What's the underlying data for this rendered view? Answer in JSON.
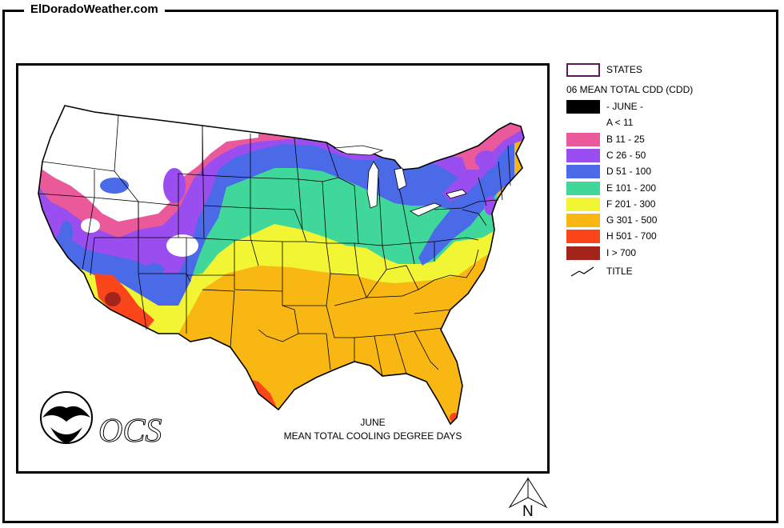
{
  "header": {
    "site_title": "ElDoradoWeather.com"
  },
  "map": {
    "month_label": "JUNE",
    "caption": "MEAN TOTAL COOLING DEGREE DAYS",
    "noaa_logo_text": "NOAA",
    "ocs_logo_text": "OCS"
  },
  "legend": {
    "states_label": "STATES",
    "heading": "06 MEAN TOTAL CDD (CDD)",
    "items": [
      {
        "label": "- JUNE -",
        "color": "#000000"
      },
      {
        "label": "A < 11",
        "color": "#ffffff"
      },
      {
        "label": "B 11 - 25",
        "color": "#ea5a9a"
      },
      {
        "label": "C 26 - 50",
        "color": "#9b4ef0"
      },
      {
        "label": "D 51 - 100",
        "color": "#4a6ae8"
      },
      {
        "label": "E 101 - 200",
        "color": "#40d89a"
      },
      {
        "label": "F 201 - 300",
        "color": "#f2f534"
      },
      {
        "label": "G 301 - 500",
        "color": "#f9b714"
      },
      {
        "label": "H 501 - 700",
        "color": "#fb461c"
      },
      {
        "label": "I > 700",
        "color": "#a3241a"
      }
    ],
    "title_label": "TITLE"
  },
  "north_arrow": {
    "label": "N"
  }
}
